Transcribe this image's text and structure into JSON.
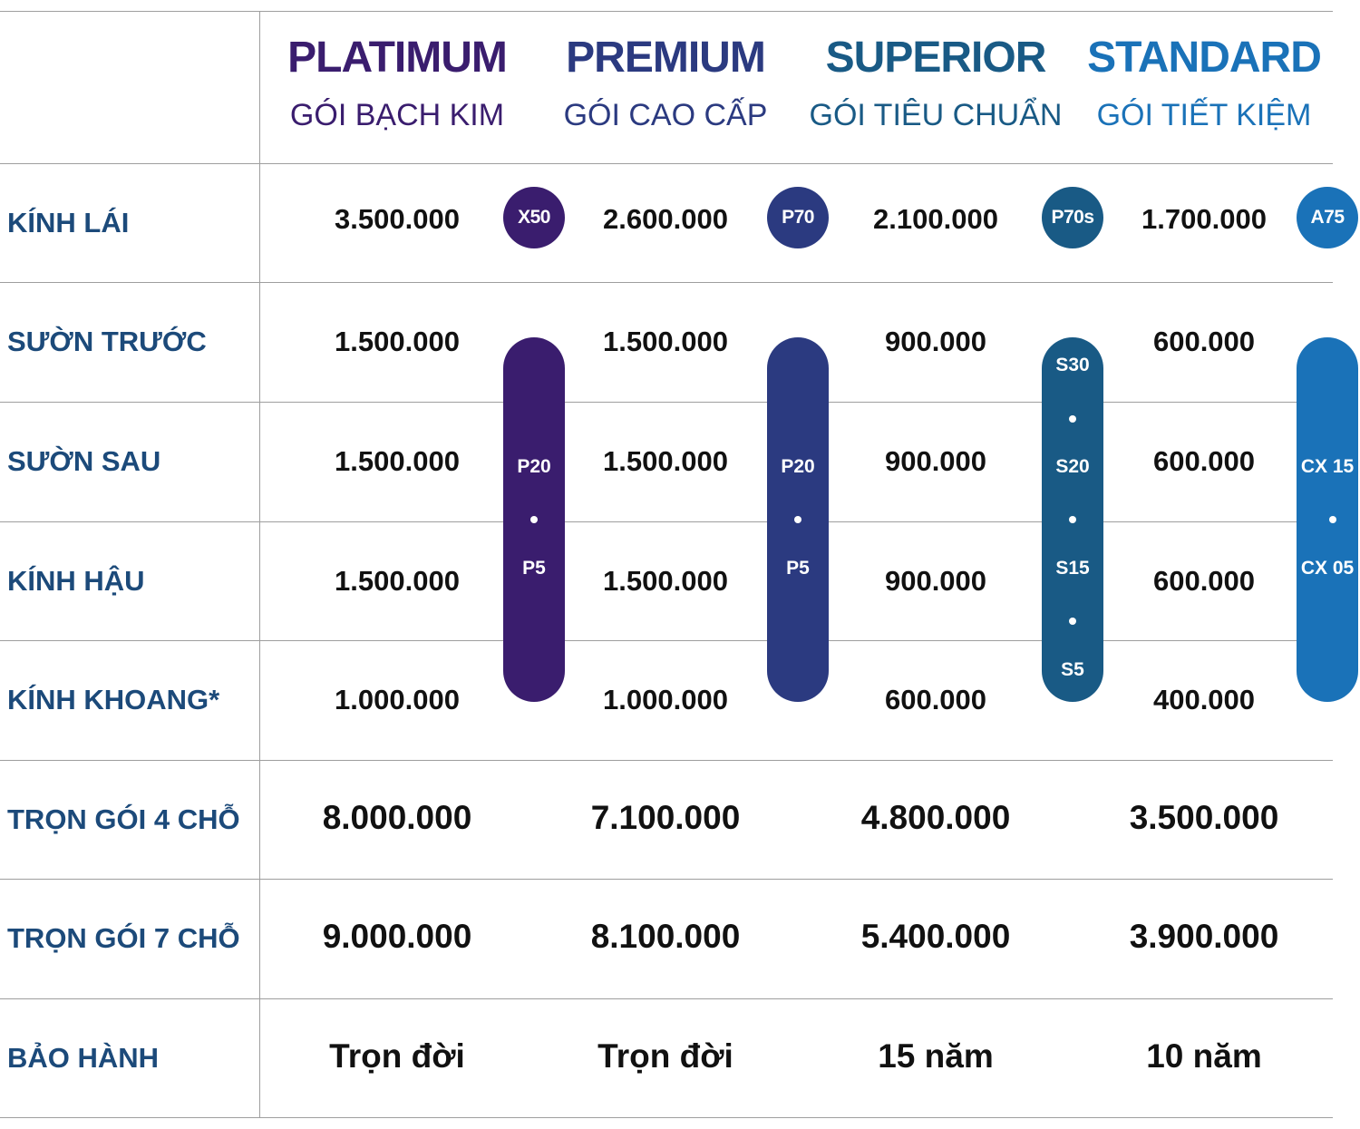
{
  "colors": {
    "platinum": "#3a1d6e",
    "premium": "#2b3a80",
    "superior": "#195a85",
    "standard": "#1a72b8",
    "row_label": "#1c4a7a",
    "value_text": "#111111",
    "rule": "#9e9e9e"
  },
  "packages": [
    {
      "name": "PLATIMUM",
      "subtitle": "GÓI BẠCH KIM",
      "badge": "X50",
      "pill": [
        "P20",
        "P5"
      ]
    },
    {
      "name": "PREMIUM",
      "subtitle": "GÓI CAO CẤP",
      "badge": "P70",
      "pill": [
        "P20",
        "P5"
      ]
    },
    {
      "name": "SUPERIOR",
      "subtitle": "GÓI TIÊU CHUẨN",
      "badge": "P70s",
      "pill": [
        "S30",
        "S20",
        "S15",
        "S5"
      ]
    },
    {
      "name": "STANDARD",
      "subtitle": "GÓI TIẾT KIỆM",
      "badge": "A75",
      "pill": [
        "CX 15",
        "CX 05"
      ]
    }
  ],
  "rows": [
    {
      "label": "KÍNH LÁI",
      "values": [
        "3.500.000",
        "2.600.000",
        "2.100.000",
        "1.700.000"
      ]
    },
    {
      "label": "SƯỜN TRƯỚC",
      "values": [
        "1.500.000",
        "1.500.000",
        "900.000",
        "600.000"
      ]
    },
    {
      "label": "SƯỜN SAU",
      "values": [
        "1.500.000",
        "1.500.000",
        "900.000",
        "600.000"
      ]
    },
    {
      "label": "KÍNH HẬU",
      "values": [
        "1.500.000",
        "1.500.000",
        "900.000",
        "600.000"
      ]
    },
    {
      "label": "KÍNH KHOANG*",
      "values": [
        "1.000.000",
        "1.000.000",
        "600.000",
        "400.000"
      ]
    },
    {
      "label": "TRỌN GÓI 4 CHỖ",
      "values": [
        "8.000.000",
        "7.100.000",
        "4.800.000",
        "3.500.000"
      ]
    },
    {
      "label": "TRỌN GÓI 7 CHỖ",
      "values": [
        "9.000.000",
        "8.100.000",
        "5.400.000",
        "3.900.000"
      ]
    },
    {
      "label": "BẢO HÀNH",
      "values": [
        "Trọn đời",
        "Trọn đời",
        "15 năm",
        "10 năm"
      ]
    }
  ]
}
